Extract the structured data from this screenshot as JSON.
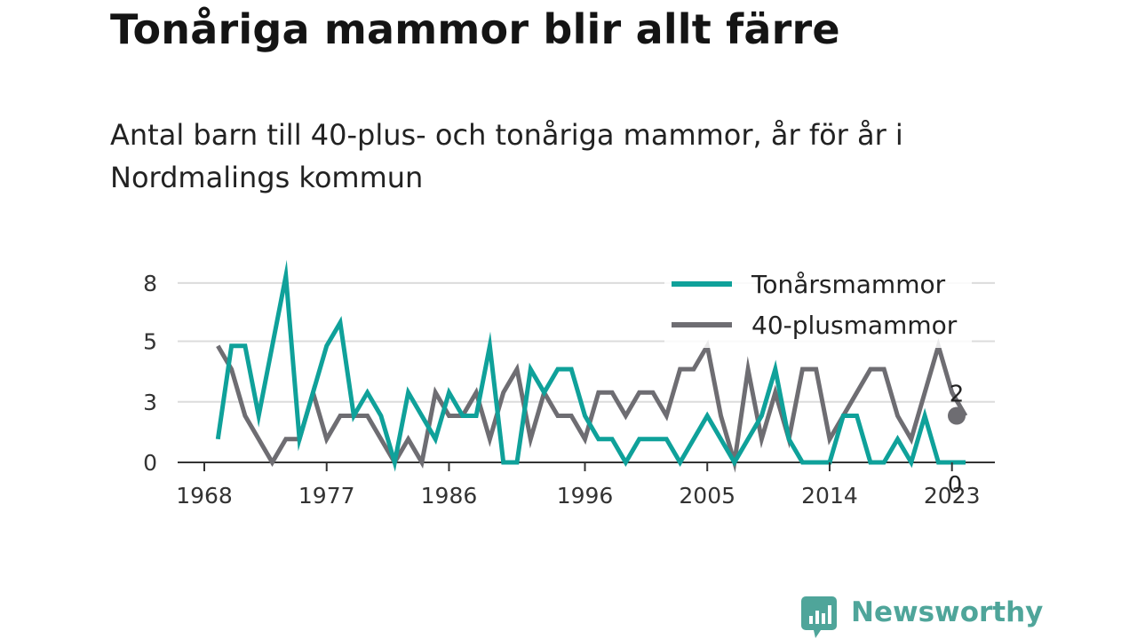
{
  "header": {
    "title": "Tonåriga mammor blir allt färre",
    "subtitle_line1": "Antal barn till 40-plus- och tonåriga mammor, år för år i",
    "subtitle_line2": "Nordmalings kommun"
  },
  "brand": {
    "name": "Newsworthy",
    "color": "#4fa59a"
  },
  "chart_data": {
    "type": "line",
    "title": "Tonåriga mammor blir allt färre",
    "ylim": [
      0,
      8.8
    ],
    "xlim": [
      1968,
      2024
    ],
    "grid": true,
    "legend_position": "top-right",
    "y_ticks": [
      {
        "value": 0,
        "label": "0"
      },
      {
        "value": 2.6,
        "label": "3"
      },
      {
        "value": 5.2,
        "label": "5"
      },
      {
        "value": 7.7,
        "label": "8"
      }
    ],
    "x_ticks": [
      {
        "value": 1968,
        "label": "1968"
      },
      {
        "value": 1977,
        "label": "1977"
      },
      {
        "value": 1986,
        "label": "1986"
      },
      {
        "value": 1996,
        "label": "1996"
      },
      {
        "value": 2005,
        "label": "2005"
      },
      {
        "value": 2014,
        "label": "2014"
      },
      {
        "value": 2023,
        "label": "2023"
      }
    ],
    "x": [
      1969,
      1970,
      1971,
      1972,
      1973,
      1974,
      1975,
      1976,
      1977,
      1978,
      1979,
      1980,
      1981,
      1982,
      1983,
      1984,
      1985,
      1986,
      1987,
      1988,
      1989,
      1990,
      1991,
      1992,
      1993,
      1994,
      1995,
      1996,
      1997,
      1998,
      1999,
      2000,
      2001,
      2002,
      2003,
      2004,
      2005,
      2006,
      2007,
      2008,
      2009,
      2010,
      2011,
      2012,
      2013,
      2014,
      2015,
      2016,
      2017,
      2018,
      2019,
      2020,
      2021,
      2022,
      2023,
      2024
    ],
    "series": [
      {
        "name": "Tonårsmammor",
        "color": "#0fa19a",
        "values": [
          1,
          5,
          5,
          2,
          5,
          8,
          1,
          3,
          5,
          6,
          2,
          3,
          2,
          0,
          3,
          2,
          1,
          3,
          2,
          2,
          5,
          0,
          0,
          4,
          3,
          4,
          4,
          2,
          1,
          1,
          0,
          1,
          1,
          1,
          0,
          1,
          2,
          1,
          0,
          1,
          2,
          4,
          1,
          0,
          0,
          0,
          2,
          2,
          0,
          0,
          1,
          0,
          2,
          0,
          0,
          0
        ],
        "end_label": "0"
      },
      {
        "name": "40-plusmammor",
        "color": "#6e6d72",
        "values": [
          5,
          4,
          2,
          1,
          0,
          1,
          1,
          3,
          1,
          2,
          2,
          2,
          1,
          0,
          1,
          0,
          3,
          2,
          2,
          3,
          1,
          3,
          4,
          1,
          3,
          2,
          2,
          1,
          3,
          3,
          2,
          3,
          3,
          2,
          4,
          4,
          5,
          2,
          0,
          4,
          1,
          3,
          1,
          4,
          4,
          1,
          2,
          3,
          4,
          4,
          2,
          1,
          3,
          5,
          3,
          2
        ],
        "end_label": "2"
      }
    ]
  }
}
